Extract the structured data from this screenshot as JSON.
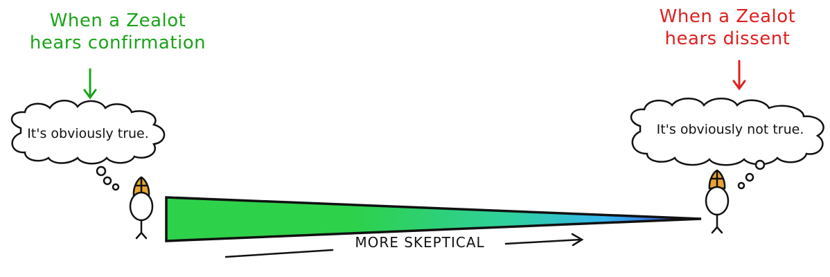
{
  "left_panel": {
    "caption_lines": [
      "When a Zealot",
      "hears confirmation"
    ],
    "thought": "It's obviously true."
  },
  "right_panel": {
    "caption_lines": [
      "When a Zealot",
      "hears dissent"
    ],
    "thought": "It's obviously not true."
  },
  "axis": {
    "label": "MORE SKEPTICAL"
  },
  "colors": {
    "confirmation_green": "#1aa31a",
    "dissent_red": "#e02020",
    "wedge_start": "#2ed14a",
    "wedge_mid": "#36b6ee",
    "wedge_end": "#3a3ad8",
    "miter_gold": "#e9a531"
  }
}
